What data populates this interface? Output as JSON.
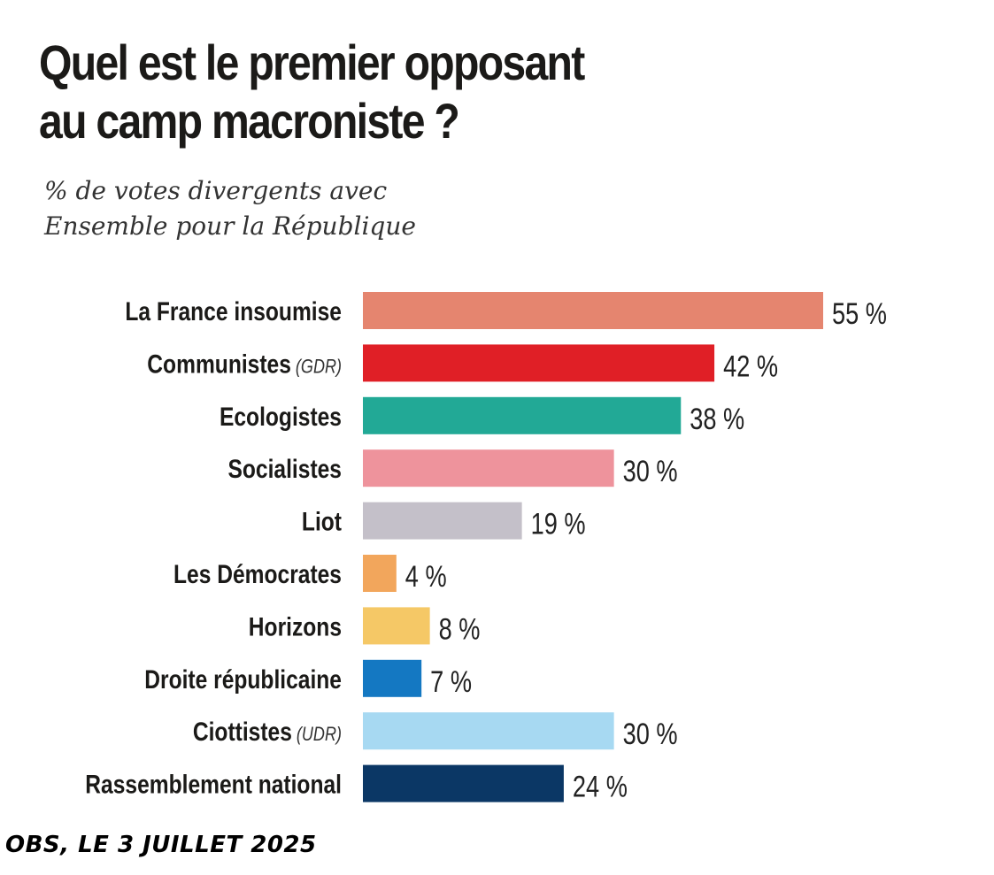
{
  "chart_data": {
    "type": "bar",
    "orientation": "horizontal",
    "title": "Quel est le premier opposant au camp macroniste ?",
    "title_lines": [
      "Quel est le premier opposant",
      "au camp macroniste ?"
    ],
    "subtitle": "% de votes divergents avec Ensemble pour la République",
    "subtitle_lines": [
      "% de votes divergents avec",
      "Ensemble pour la République"
    ],
    "xlabel": "",
    "ylabel": "",
    "xlim": [
      0,
      55
    ],
    "grid": false,
    "unit": "%",
    "categories": [
      "La France insoumise",
      "Communistes",
      "Ecologistes",
      "Socialistes",
      "Liot",
      "Les Démocrates",
      "Horizons",
      "Droite républicaine",
      "Ciottistes",
      "Rassemblement national"
    ],
    "category_notes": [
      "",
      "(GDR)",
      "",
      "",
      "",
      "",
      "",
      "",
      "(UDR)",
      ""
    ],
    "values": [
      55,
      42,
      38,
      30,
      19,
      4,
      8,
      7,
      30,
      24
    ],
    "value_labels": [
      "55 %",
      "42 %",
      "38 %",
      "30 %",
      "19 %",
      "4 %",
      "8 %",
      "7 %",
      "30 %",
      "24 %"
    ],
    "colors": [
      "#e5856f",
      "#e01f26",
      "#22a996",
      "#ee939c",
      "#c4c0c9",
      "#f2a65c",
      "#f5c866",
      "#1478c2",
      "#a7d9f2",
      "#0b3765"
    ],
    "source": "OBS, LE 3 JUILLET 2025"
  }
}
